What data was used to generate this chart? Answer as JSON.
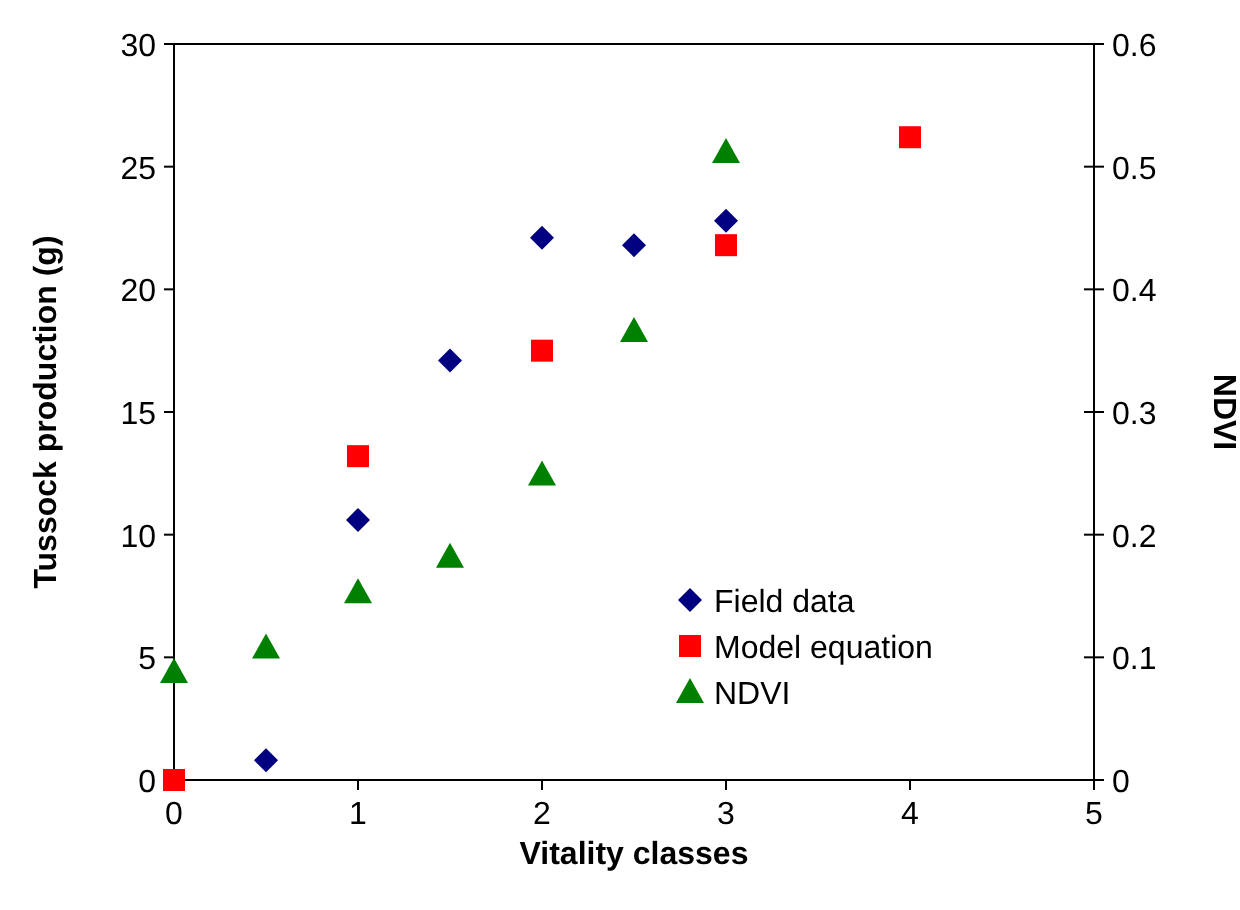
{
  "chart_data": {
    "type": "scatter",
    "xlabel": "Vitality classes",
    "ylabel": "Tussock production (g)",
    "y2label": "NDVI",
    "xlim": [
      0,
      5
    ],
    "xticks": [
      0,
      1,
      2,
      3,
      4,
      5
    ],
    "ylim": [
      0,
      30
    ],
    "yticks": [
      0,
      5,
      10,
      15,
      20,
      25,
      30
    ],
    "y2lim": [
      0,
      0.6
    ],
    "y2ticks": [
      0,
      0.1,
      0.2,
      0.3,
      0.4,
      0.5,
      0.6
    ],
    "legend": "bottom right",
    "grid": false,
    "series": [
      {
        "name": "Field data",
        "color": "#000080",
        "marker": "diamond",
        "x": [
          0.5,
          1,
          1.5,
          2,
          2.5,
          3
        ],
        "values": [
          0.8,
          10.6,
          17.1,
          22.1,
          21.8,
          22.8
        ]
      },
      {
        "name": "Model equation",
        "color": "#ff0000",
        "marker": "square",
        "x": [
          0,
          1,
          2,
          3,
          4
        ],
        "values": [
          0,
          13.2,
          17.5,
          21.8,
          26.2
        ]
      },
      {
        "name": "NDVI",
        "color": "#008000",
        "marker": "triangle",
        "axis": "y2",
        "x": [
          0,
          0.5,
          1,
          1.5,
          2,
          2.5,
          3
        ],
        "values": [
          0.088,
          0.108,
          0.153,
          0.182,
          0.249,
          0.366,
          0.512
        ]
      }
    ]
  }
}
